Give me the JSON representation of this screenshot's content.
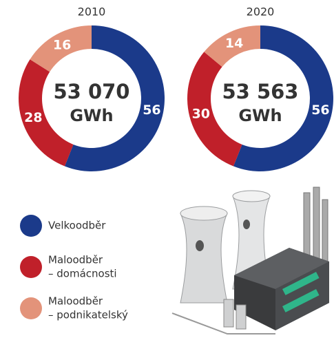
{
  "chart_data": [
    {
      "type": "pie",
      "title": "2010",
      "values": [
        56,
        28,
        16
      ],
      "colors": [
        "#1b3a8a",
        "#c0202a",
        "#e3937a"
      ],
      "center_label": "53 070",
      "center_unit": "GWh"
    },
    {
      "type": "pie",
      "title": "2020",
      "values": [
        56,
        30,
        14
      ],
      "colors": [
        "#1b3a8a",
        "#c0202a",
        "#e3937a"
      ],
      "center_label": "53 563",
      "center_unit": "GWh"
    }
  ],
  "legend": [
    [
      "Velkoodběr"
    ],
    [
      "Maloodběr",
      "– domácnosti"
    ],
    [
      "Maloodběr",
      "– podnikatelský"
    ]
  ]
}
